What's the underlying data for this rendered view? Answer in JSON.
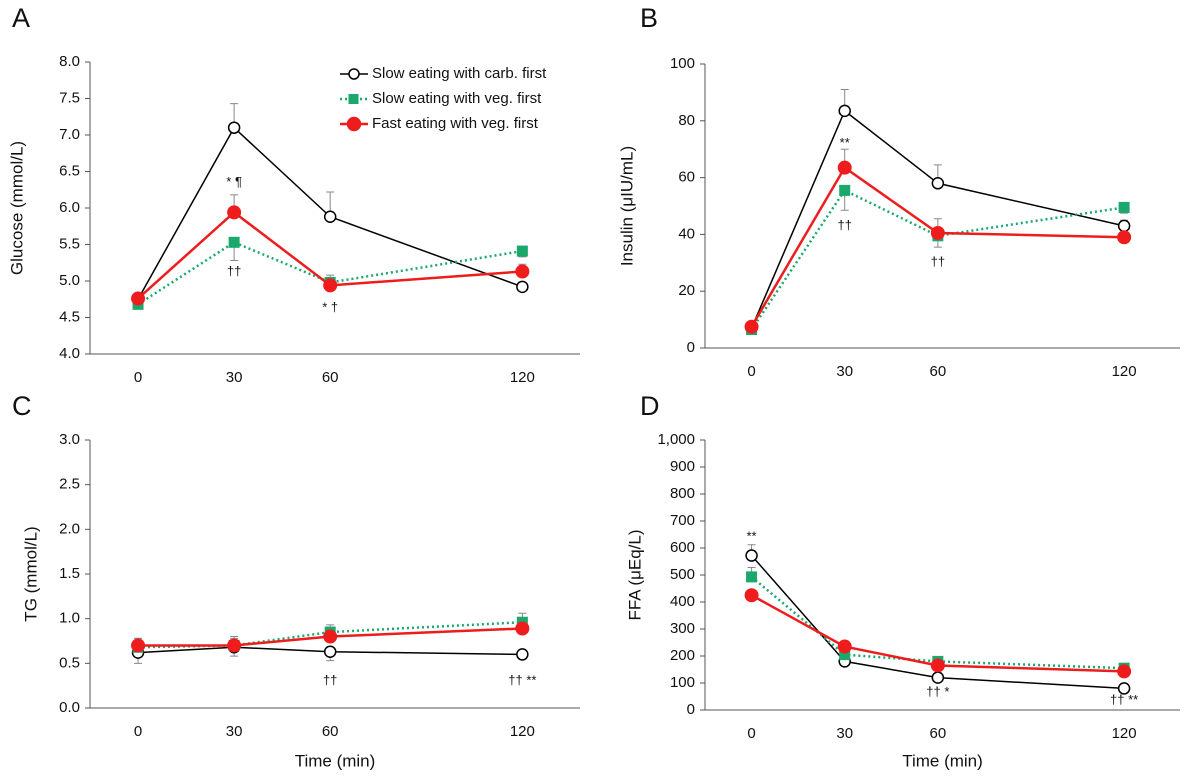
{
  "chart_data": [
    {
      "type": "line",
      "panel_label": "A",
      "y_label": "Glucose (mmol/L)",
      "x": [
        0,
        30,
        60,
        120
      ],
      "xlim": [
        -15,
        138
      ],
      "xticks": [
        0,
        30,
        60,
        120
      ],
      "ylim": [
        4,
        8
      ],
      "yticks": [
        {
          "value": 4,
          "label": "4.0"
        },
        4.5,
        {
          "value": 5,
          "label": "5.0"
        },
        5.5,
        {
          "value": 6,
          "label": "6.0"
        },
        6.5,
        {
          "value": 7,
          "label": "7.0"
        },
        7.5,
        {
          "value": 8,
          "label": "8.0"
        }
      ],
      "legend": "upper right",
      "series": [
        {
          "name": "Slow eating with carb. first",
          "color": "#000000",
          "marker": "circle-open",
          "dash": "solid",
          "error_side": "up",
          "values": [
            4.75,
            7.1,
            5.88,
            4.92
          ],
          "errors": [
            0.05,
            0.33,
            0.34,
            0.05
          ]
        },
        {
          "name": "Slow eating with veg. first",
          "color": "#1aa86c",
          "marker": "square",
          "dash": "dotted",
          "error_side": "down",
          "values": [
            4.68,
            5.53,
            4.98,
            5.41
          ],
          "errors": [
            0.05,
            0.25,
            0.1,
            0.08
          ]
        },
        {
          "name": "Fast eating with veg. first",
          "color": "#ee1c1c",
          "marker": "circle",
          "dash": "solid",
          "error_side": "up",
          "values": [
            4.76,
            5.94,
            4.94,
            5.13
          ],
          "errors": [
            0.05,
            0.24,
            0.14,
            0.1
          ]
        }
      ],
      "annotations": [
        {
          "text": "* ¶",
          "x": 30,
          "y": 6.35
        },
        {
          "text": "††",
          "x": 30,
          "y": 5.12
        },
        {
          "text": "* †",
          "x": 60,
          "y": 4.63
        }
      ]
    },
    {
      "type": "line",
      "panel_label": "B",
      "y_label": "Insulin (μIU/mL)",
      "x": [
        0,
        30,
        60,
        120
      ],
      "xlim": [
        -15,
        138
      ],
      "xticks": [
        0,
        30,
        60,
        120
      ],
      "ylim": [
        0,
        100
      ],
      "yticks": [
        0,
        20,
        40,
        60,
        80,
        100
      ],
      "series": [
        {
          "color": "#000000",
          "marker": "circle-open",
          "dash": "solid",
          "error_side": "up",
          "values": [
            7,
            83.5,
            58,
            43
          ],
          "errors": [
            1,
            7.5,
            6.5,
            2
          ]
        },
        {
          "color": "#1aa86c",
          "marker": "square",
          "dash": "dotted",
          "error_side": "down",
          "values": [
            6.5,
            55.5,
            39.5,
            49.5
          ],
          "errors": [
            1,
            7,
            4,
            2
          ]
        },
        {
          "color": "#ee1c1c",
          "marker": "circle",
          "dash": "solid",
          "error_side": "up",
          "values": [
            7.5,
            63.5,
            40.5,
            39
          ],
          "errors": [
            1,
            6.5,
            5,
            1
          ]
        }
      ],
      "annotations": [
        {
          "text": "**",
          "x": 30,
          "y": 72
        },
        {
          "text": "††",
          "x": 30,
          "y": 43
        },
        {
          "text": "††",
          "x": 60,
          "y": 30
        }
      ]
    },
    {
      "type": "line",
      "panel_label": "C",
      "y_label": "TG (mmol/L)",
      "x_label": "Time (min)",
      "x": [
        0,
        30,
        60,
        120
      ],
      "xlim": [
        -15,
        138
      ],
      "xticks": [
        0,
        30,
        60,
        120
      ],
      "ylim": [
        0,
        3
      ],
      "yticks": [
        {
          "value": 0,
          "label": "0.0"
        },
        0.5,
        {
          "value": 1,
          "label": "1.0"
        },
        1.5,
        {
          "value": 2,
          "label": "2.0"
        },
        2.5,
        {
          "value": 3,
          "label": "3.0"
        }
      ],
      "series": [
        {
          "color": "#000000",
          "marker": "circle-open",
          "dash": "solid",
          "error_side": "down",
          "values": [
            0.62,
            0.68,
            0.63,
            0.6
          ],
          "errors": [
            0.12,
            0.1,
            0.1,
            0.05
          ]
        },
        {
          "color": "#1aa86c",
          "marker": "square",
          "dash": "dotted",
          "error_side": "up",
          "values": [
            0.68,
            0.7,
            0.85,
            0.96
          ],
          "errors": [
            0.1,
            0.1,
            0.08,
            0.1
          ]
        },
        {
          "color": "#ee1c1c",
          "marker": "circle",
          "dash": "solid",
          "error_side": "up",
          "values": [
            0.7,
            0.7,
            0.8,
            0.89
          ],
          "errors": [
            0.08,
            0.08,
            0.06,
            0.07
          ]
        }
      ],
      "annotations": [
        {
          "text": "††",
          "x": 60,
          "y": 0.3
        },
        {
          "text": "†† **",
          "x": 120,
          "y": 0.3
        }
      ]
    },
    {
      "type": "line",
      "panel_label": "D",
      "y_label": "FFA (μEq/L)",
      "x_label": "Time (min)",
      "x": [
        0,
        30,
        60,
        120
      ],
      "xlim": [
        -15,
        138
      ],
      "xticks": [
        0,
        30,
        60,
        120
      ],
      "ylim": [
        0,
        1000
      ],
      "yticks": [
        0,
        100,
        200,
        300,
        400,
        500,
        600,
        700,
        800,
        900,
        {
          "value": 1000,
          "label": "1,000"
        }
      ],
      "series": [
        {
          "color": "#000000",
          "marker": "circle-open",
          "dash": "solid",
          "error_side": "up",
          "values": [
            572,
            180,
            120,
            80
          ],
          "errors": [
            40,
            20,
            15,
            10
          ]
        },
        {
          "color": "#1aa86c",
          "marker": "square",
          "dash": "dotted",
          "error_side": "up",
          "values": [
            493,
            205,
            180,
            155
          ],
          "errors": [
            35,
            15,
            10,
            10
          ]
        },
        {
          "color": "#ee1c1c",
          "marker": "circle",
          "dash": "solid",
          "error_side": "up",
          "values": [
            425,
            235,
            165,
            143
          ],
          "errors": [
            15,
            10,
            10,
            10
          ]
        }
      ],
      "annotations": [
        {
          "text": "**",
          "x": 0,
          "y": 640
        },
        {
          "text": "†† *",
          "x": 60,
          "y": 65
        },
        {
          "text": "†† **",
          "x": 120,
          "y": 35
        }
      ]
    }
  ]
}
